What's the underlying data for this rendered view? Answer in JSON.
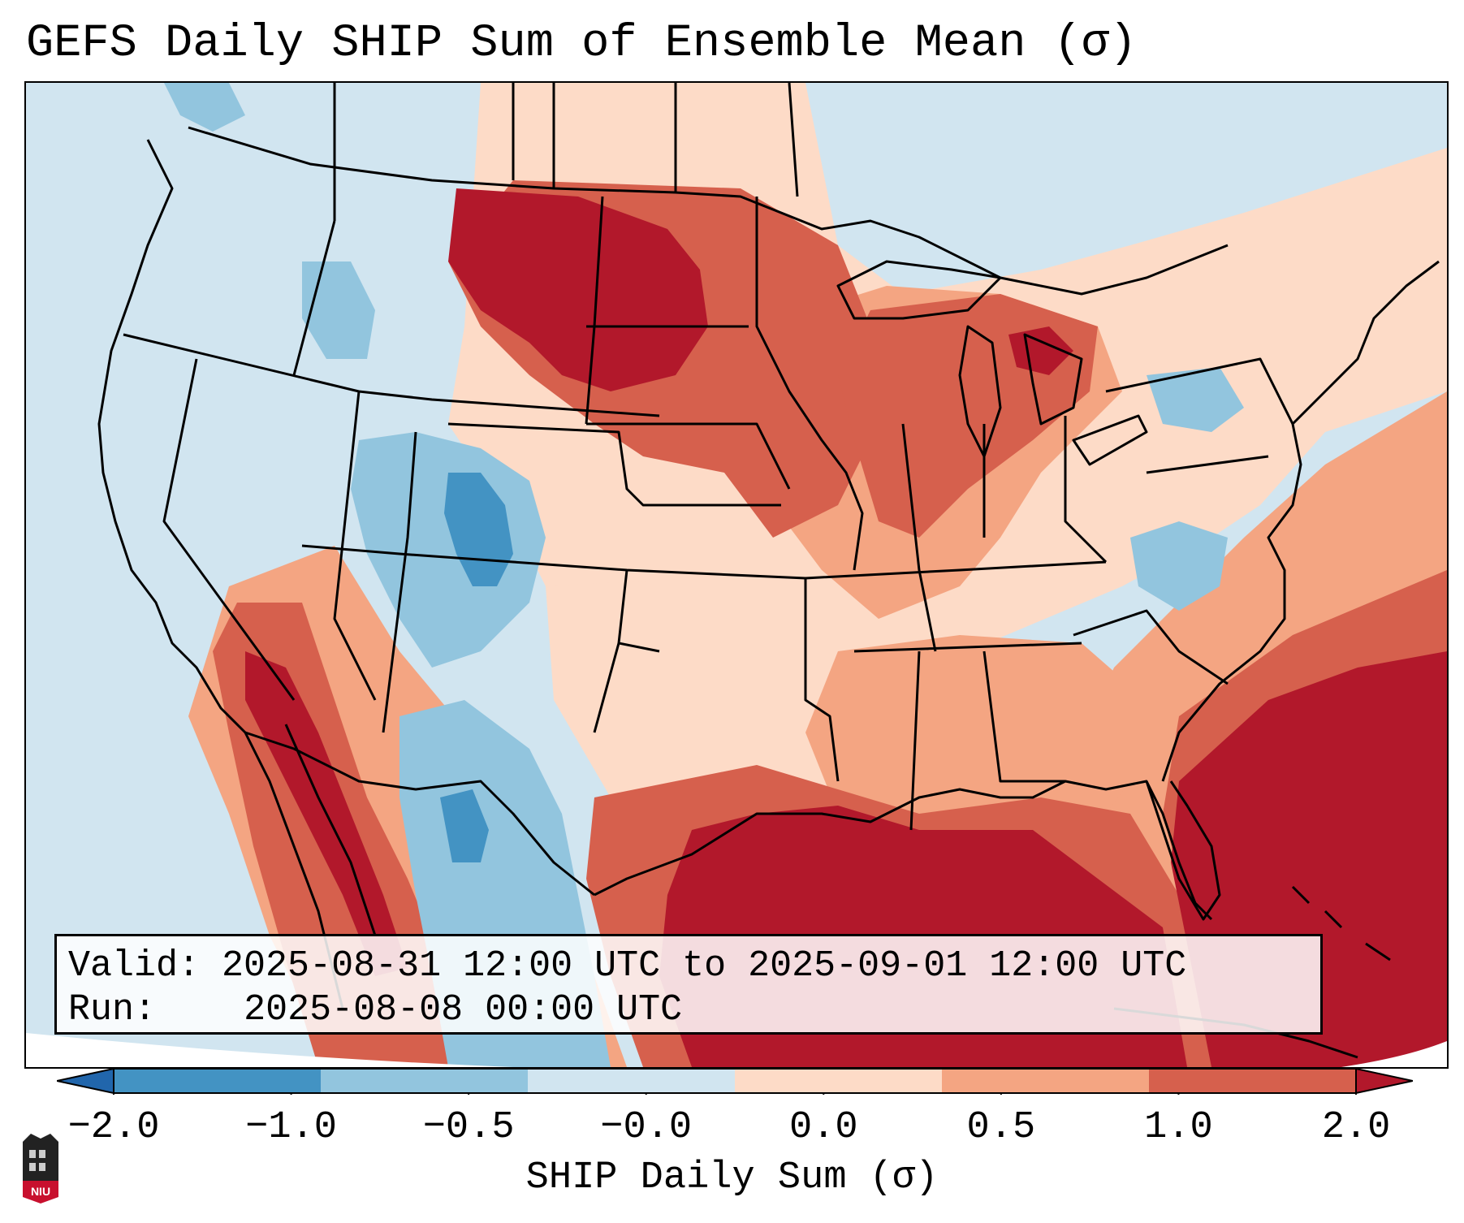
{
  "title": "GEFS Daily SHIP Sum of Ensemble Mean (σ)",
  "info": {
    "valid_label": "Valid:",
    "valid_value": "2025-08-31 12:00 UTC to 2025-09-01 12:00 UTC",
    "run_label": "Run:",
    "run_value": "2025-08-08 00:00 UTC"
  },
  "colorbar": {
    "label": "SHIP Daily Sum (σ)",
    "ticks": [
      "−2.0",
      "−1.0",
      "−0.5",
      "−0.0",
      "0.0",
      "0.5",
      "1.0",
      "2.0"
    ],
    "colors": [
      "#2166ac",
      "#4393c3",
      "#92c5de",
      "#d1e5f0",
      "#fddbc7",
      "#f4a582",
      "#d6604d",
      "#b2182b"
    ]
  },
  "colors": {
    "ocean_neutral": "#d1e5f0",
    "strong_positive": "#b2182b",
    "positive": "#d6604d",
    "weak_positive": "#f4a582",
    "slight_positive": "#fddbc7",
    "slight_negative": "#d1e5f0",
    "weak_negative": "#92c5de",
    "negative": "#4393c3",
    "strong_negative": "#2166ac"
  },
  "logo": {
    "text": "NIU"
  }
}
